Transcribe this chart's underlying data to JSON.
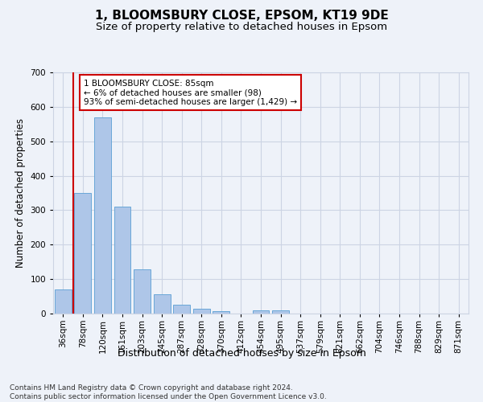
{
  "title": "1, BLOOMSBURY CLOSE, EPSOM, KT19 9DE",
  "subtitle": "Size of property relative to detached houses in Epsom",
  "xlabel": "Distribution of detached houses by size in Epsom",
  "ylabel": "Number of detached properties",
  "bar_labels": [
    "36sqm",
    "78sqm",
    "120sqm",
    "161sqm",
    "203sqm",
    "245sqm",
    "287sqm",
    "328sqm",
    "370sqm",
    "412sqm",
    "454sqm",
    "495sqm",
    "537sqm",
    "579sqm",
    "621sqm",
    "662sqm",
    "704sqm",
    "746sqm",
    "788sqm",
    "829sqm",
    "871sqm"
  ],
  "bar_values": [
    70,
    350,
    570,
    310,
    128,
    57,
    25,
    15,
    8,
    0,
    10,
    10,
    0,
    0,
    0,
    0,
    0,
    0,
    0,
    0,
    0
  ],
  "bar_color": "#aec6e8",
  "bar_edge_color": "#5a9fd4",
  "background_color": "#eef2f9",
  "grid_color": "#ccd4e4",
  "vline_x": 0.5,
  "vline_color": "#cc0000",
  "annotation_text": "1 BLOOMSBURY CLOSE: 85sqm\n← 6% of detached houses are smaller (98)\n93% of semi-detached houses are larger (1,429) →",
  "annotation_box_color": "#cc0000",
  "ylim": [
    0,
    700
  ],
  "yticks": [
    0,
    100,
    200,
    300,
    400,
    500,
    600,
    700
  ],
  "footnote": "Contains HM Land Registry data © Crown copyright and database right 2024.\nContains public sector information licensed under the Open Government Licence v3.0.",
  "title_fontsize": 11,
  "subtitle_fontsize": 9.5,
  "xlabel_fontsize": 9,
  "ylabel_fontsize": 8.5,
  "tick_fontsize": 7.5,
  "annot_fontsize": 7.5,
  "footnote_fontsize": 6.5
}
